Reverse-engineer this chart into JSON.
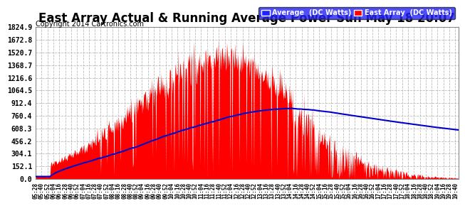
{
  "title": "East Array Actual & Running Average Power Sun May 18 20:07",
  "copyright": "Copyright 2014 Cartronics.com",
  "legend_avg": "Average  (DC Watts)",
  "legend_east": "East Array  (DC Watts)",
  "y_ticks": [
    0.0,
    152.1,
    304.1,
    456.2,
    608.3,
    760.4,
    912.4,
    1064.5,
    1216.6,
    1368.7,
    1520.7,
    1672.8,
    1824.9
  ],
  "ymax": 1824.9,
  "background_color": "#ffffff",
  "plot_bg_color": "#ffffff",
  "grid_color": "#bbbbbb",
  "fill_color": "#ff0000",
  "line_color": "#0000cc",
  "title_fontsize": 12
}
